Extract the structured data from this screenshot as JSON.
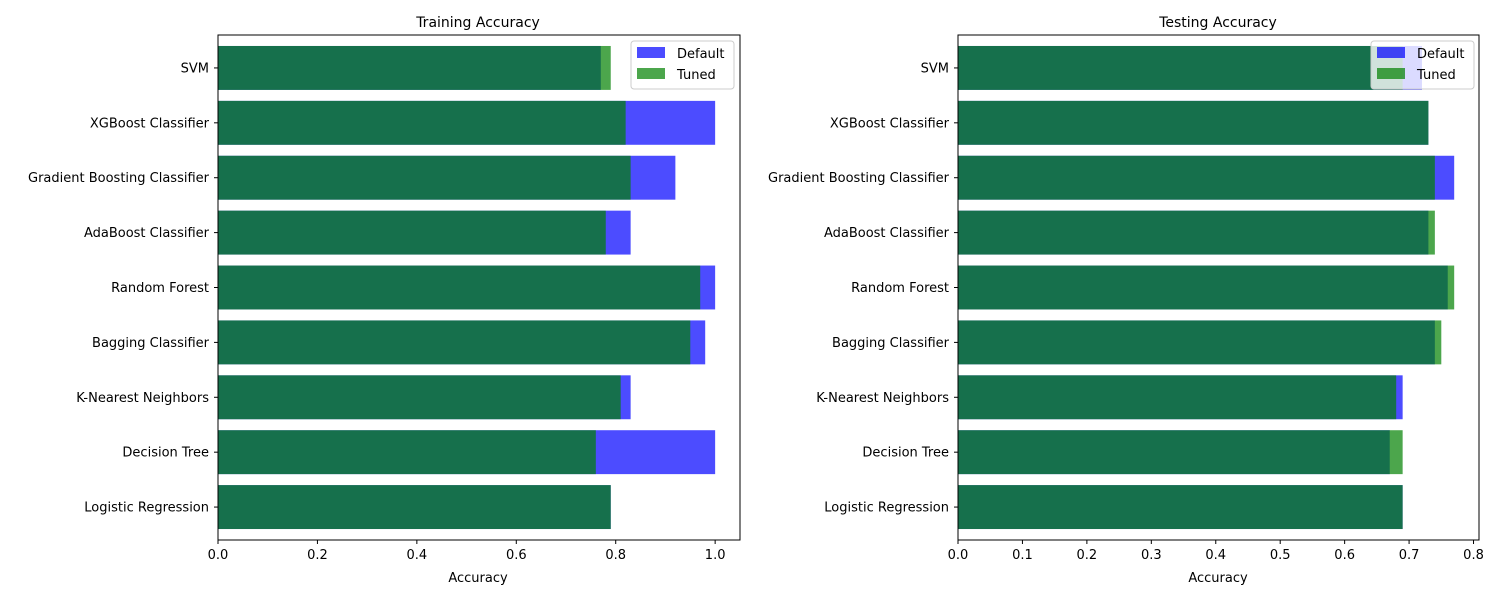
{
  "chart_data": [
    {
      "type": "bar",
      "orientation": "horizontal",
      "title": "Training Accuracy",
      "xlabel": "Accuracy",
      "ylabel": "",
      "xlim": [
        0,
        1.05
      ],
      "xticks": [
        "0.0",
        "0.2",
        "0.4",
        "0.6",
        "0.8",
        "1.0"
      ],
      "xtick_values": [
        0.0,
        0.2,
        0.4,
        0.6,
        0.8,
        1.0
      ],
      "categories": [
        "Logistic Regression",
        "Decision Tree",
        "K-Nearest Neighbors",
        "Bagging Classifier",
        "Random Forest",
        "AdaBoost Classifier",
        "Gradient Boosting Classifier",
        "XGBoost Classifier",
        "SVM"
      ],
      "series": [
        {
          "name": "Default",
          "color": "#0000ff",
          "values": [
            0.79,
            1.0,
            0.83,
            0.98,
            1.0,
            0.83,
            0.92,
            1.0,
            0.77
          ]
        },
        {
          "name": "Tuned",
          "color": "#008000",
          "values": [
            0.79,
            0.76,
            0.81,
            0.95,
            0.97,
            0.78,
            0.83,
            0.82,
            0.79
          ]
        }
      ],
      "legend": "top-right",
      "grid": false
    },
    {
      "type": "bar",
      "orientation": "horizontal",
      "title": "Testing Accuracy",
      "xlabel": "Accuracy",
      "ylabel": "",
      "xlim": [
        0,
        0.8085
      ],
      "xticks": [
        "0.0",
        "0.1",
        "0.2",
        "0.3",
        "0.4",
        "0.5",
        "0.6",
        "0.7",
        "0.8"
      ],
      "xtick_values": [
        0.0,
        0.1,
        0.2,
        0.3,
        0.4,
        0.5,
        0.6,
        0.7,
        0.8
      ],
      "categories": [
        "Logistic Regression",
        "Decision Tree",
        "K-Nearest Neighbors",
        "Bagging Classifier",
        "Random Forest",
        "AdaBoost Classifier",
        "Gradient Boosting Classifier",
        "XGBoost Classifier",
        "SVM"
      ],
      "series": [
        {
          "name": "Default",
          "color": "#0000ff",
          "values": [
            0.69,
            0.67,
            0.69,
            0.74,
            0.76,
            0.73,
            0.77,
            0.73,
            0.72
          ]
        },
        {
          "name": "Tuned",
          "color": "#008000",
          "values": [
            0.69,
            0.69,
            0.68,
            0.75,
            0.77,
            0.74,
            0.74,
            0.73,
            0.69
          ]
        }
      ],
      "legend": "top-right",
      "grid": false
    }
  ]
}
